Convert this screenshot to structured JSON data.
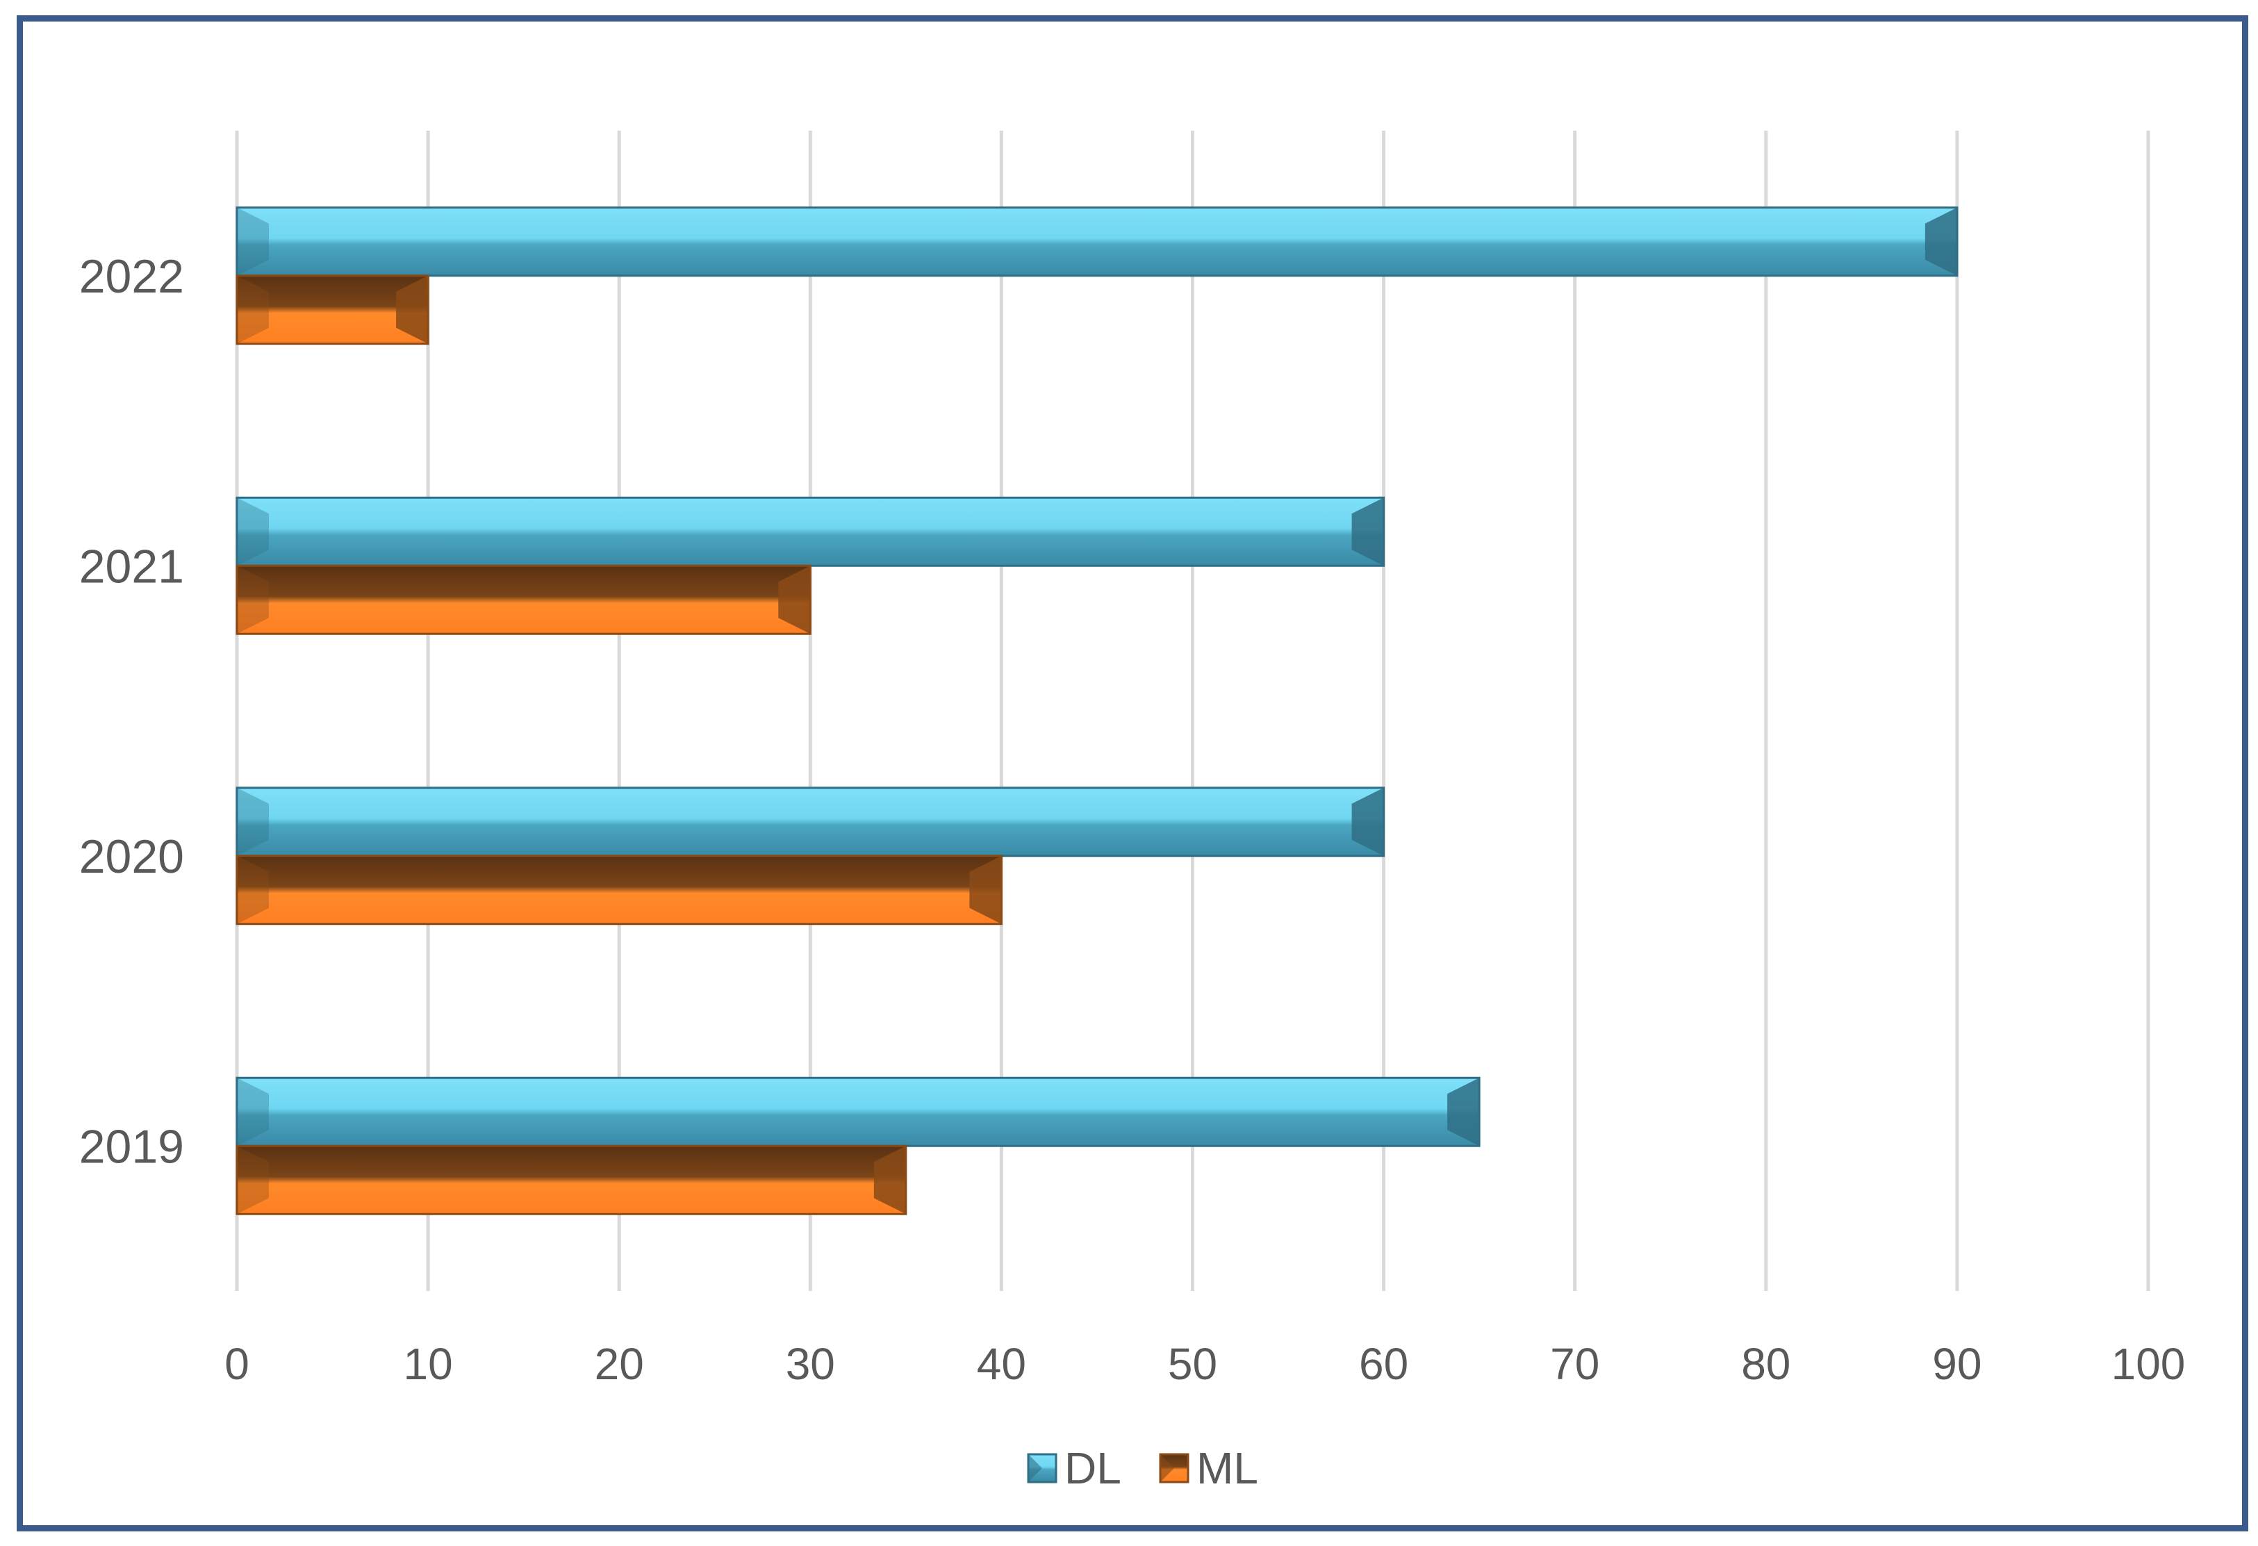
{
  "chart_data": {
    "type": "bar",
    "orientation": "horizontal",
    "categories": [
      "2019",
      "2020",
      "2021",
      "2022"
    ],
    "series": [
      {
        "name": "DL",
        "values": [
          65,
          60,
          60,
          90
        ],
        "color": "#5fc8e6"
      },
      {
        "name": "ML",
        "values": [
          35,
          40,
          30,
          10
        ],
        "color": "#f58a33"
      }
    ],
    "xlim": [
      0,
      100
    ],
    "x_ticks": [
      "0",
      "10",
      "20",
      "30",
      "40",
      "50",
      "60",
      "70",
      "80",
      "90",
      "100"
    ],
    "grid": "vertical",
    "legend_position": "bottom",
    "colors": {
      "frame": "#3b5b8c",
      "grid": "#d9d9d9",
      "text": "#595959"
    }
  }
}
